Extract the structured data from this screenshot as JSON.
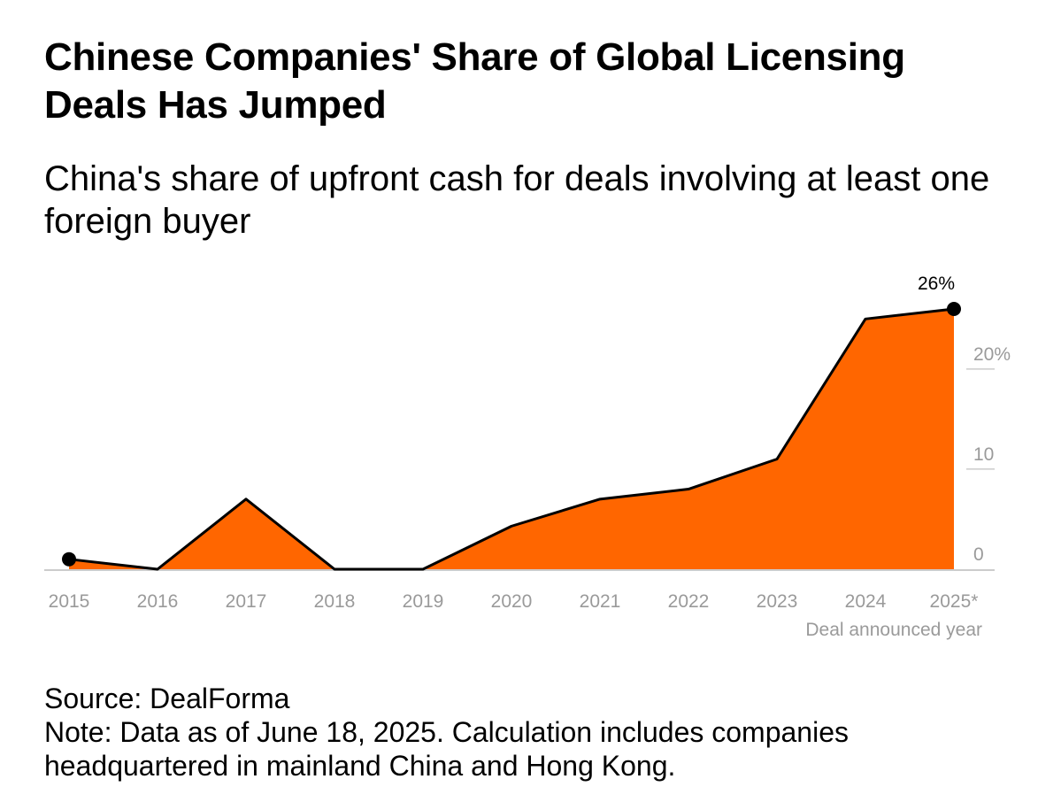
{
  "title": "Chinese Companies' Share of Global Licensing Deals Has Jumped",
  "subtitle": "China's share of upfront cash for deals involving at least one foreign buyer",
  "source": "Source: DealForma",
  "note": "Note: Data as of June 18, 2025. Calculation includes companies headquartered in mainland China and Hong Kong.",
  "colors": {
    "fill": "#ff6600",
    "line": "#000000",
    "axis": "#cccccc",
    "tick_text": "#9a9a9a"
  },
  "chart_data": {
    "type": "area",
    "title": "Chinese Companies' Share of Global Licensing Deals Has Jumped",
    "subtitle": "China's share of upfront cash for deals involving at least one foreign buyer",
    "xlabel": "Deal announced year",
    "ylabel": "",
    "categories": [
      "2015",
      "2016",
      "2017",
      "2018",
      "2019",
      "2020",
      "2021",
      "2022",
      "2023",
      "2024",
      "2025*"
    ],
    "values": [
      1,
      0,
      7,
      0,
      0,
      4.3,
      7,
      8,
      11,
      25,
      26
    ],
    "ylim": [
      0,
      26
    ],
    "yticks": [
      0,
      10,
      20
    ],
    "ytick_labels": [
      "0",
      "10",
      "20%"
    ],
    "y_axis_position": "right",
    "grid": false,
    "legend": "none",
    "markers": [
      {
        "category": "2015",
        "value": 1,
        "label": ""
      },
      {
        "category": "2025*",
        "value": 26,
        "label": "26%"
      }
    ]
  }
}
